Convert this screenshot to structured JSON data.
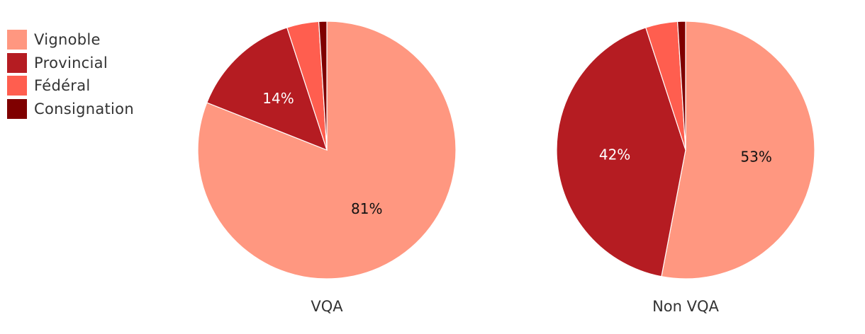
{
  "chart_data": [
    {
      "type": "pie",
      "title": "",
      "xlabel": "VQA",
      "slices": [
        {
          "category": "Vignoble",
          "value": 81,
          "label": "81%"
        },
        {
          "category": "Provincial",
          "value": 14,
          "label": "14%"
        },
        {
          "category": "Fédéral",
          "value": 4,
          "label": ""
        },
        {
          "category": "Consignation",
          "value": 1,
          "label": ""
        }
      ]
    },
    {
      "type": "pie",
      "title": "",
      "xlabel": "Non VQA",
      "slices": [
        {
          "category": "Vignoble",
          "value": 53,
          "label": "53%"
        },
        {
          "category": "Provincial",
          "value": 42,
          "label": "42%"
        },
        {
          "category": "Fédéral",
          "value": 4,
          "label": ""
        },
        {
          "category": "Consignation",
          "value": 1,
          "label": ""
        }
      ]
    }
  ],
  "legend": {
    "placement": "top-left",
    "items": [
      {
        "label": "Vignoble",
        "color": "#FF9780"
      },
      {
        "label": "Provincial",
        "color": "#B51C22"
      },
      {
        "label": "Fédéral",
        "color": "#FF5E4F"
      },
      {
        "label": "Consignation",
        "color": "#7F0000"
      }
    ]
  }
}
